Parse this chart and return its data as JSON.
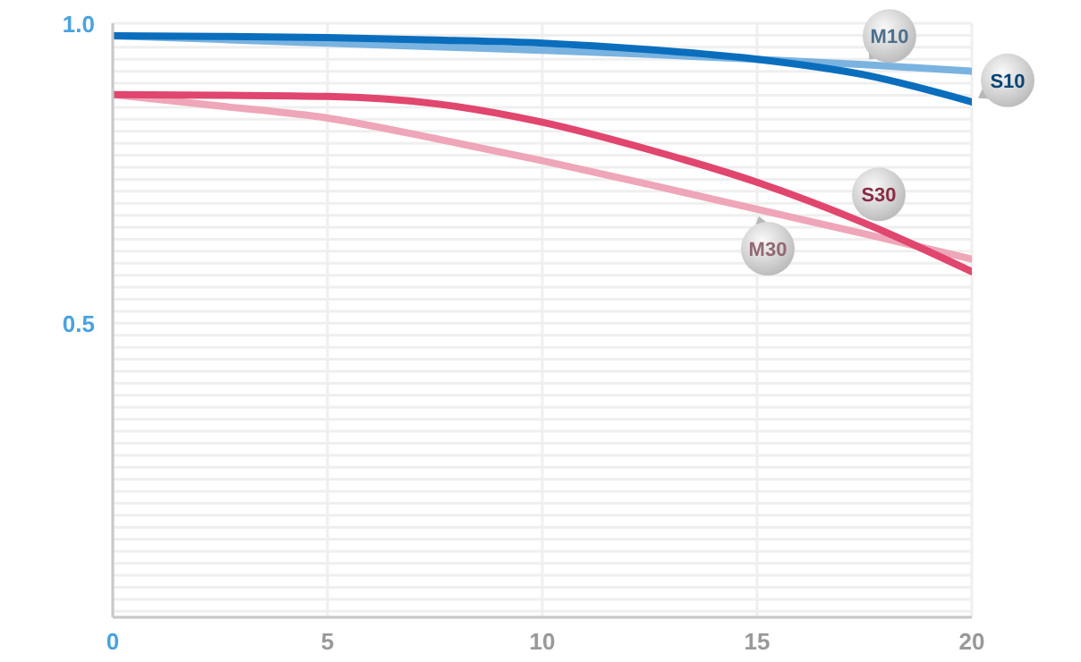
{
  "chart_data": {
    "type": "line",
    "x": [
      0,
      2.5,
      5,
      7.5,
      10,
      12.5,
      15,
      17.5,
      20
    ],
    "series": [
      {
        "name": "M10",
        "color": "#7ab3e0",
        "values": [
          0.979,
          0.973,
          0.967,
          0.961,
          0.955,
          0.948,
          0.94,
          0.931,
          0.92
        ]
      },
      {
        "name": "S10",
        "color": "#0a6ebd",
        "values": [
          0.979,
          0.978,
          0.976,
          0.972,
          0.967,
          0.956,
          0.94,
          0.914,
          0.869
        ]
      },
      {
        "name": "M30",
        "color": "#eea6b8",
        "values": [
          0.881,
          0.862,
          0.842,
          0.808,
          0.771,
          0.731,
          0.69,
          0.649,
          0.607
        ]
      },
      {
        "name": "S30",
        "color": "#e0466e",
        "values": [
          0.881,
          0.88,
          0.878,
          0.866,
          0.835,
          0.789,
          0.735,
          0.667,
          0.586
        ]
      }
    ],
    "xlim": [
      0,
      20
    ],
    "xticks": [
      0,
      5,
      10,
      15,
      20
    ],
    "ylim": [
      0.01,
      1.0
    ],
    "yticks": [
      {
        "value": 0.02,
        "label": null
      },
      {
        "value": 0.04,
        "label": null
      },
      {
        "value": 0.06,
        "label": null
      },
      {
        "value": 0.08,
        "label": null
      },
      {
        "value": 0.1,
        "label": null
      },
      {
        "value": 0.12,
        "label": null
      },
      {
        "value": 0.14,
        "label": null
      },
      {
        "value": 0.16,
        "label": null
      },
      {
        "value": 0.18,
        "label": null
      },
      {
        "value": 0.2,
        "label": null
      },
      {
        "value": 0.22,
        "label": null
      },
      {
        "value": 0.24,
        "label": null
      },
      {
        "value": 0.26,
        "label": null
      },
      {
        "value": 0.28,
        "label": null
      },
      {
        "value": 0.3,
        "label": null
      },
      {
        "value": 0.32,
        "label": null
      },
      {
        "value": 0.34,
        "label": null
      },
      {
        "value": 0.36,
        "label": null
      },
      {
        "value": 0.38,
        "label": null
      },
      {
        "value": 0.4,
        "label": null
      },
      {
        "value": 0.42,
        "label": null
      },
      {
        "value": 0.44,
        "label": null
      },
      {
        "value": 0.46,
        "label": null
      },
      {
        "value": 0.48,
        "label": null
      },
      {
        "value": 0.5,
        "label": "0.5"
      },
      {
        "value": 0.52,
        "label": null
      },
      {
        "value": 0.54,
        "label": null
      },
      {
        "value": 0.56,
        "label": null
      },
      {
        "value": 0.58,
        "label": null
      },
      {
        "value": 0.6,
        "label": null
      },
      {
        "value": 0.62,
        "label": null
      },
      {
        "value": 0.64,
        "label": null
      },
      {
        "value": 0.66,
        "label": null
      },
      {
        "value": 0.68,
        "label": null
      },
      {
        "value": 0.7,
        "label": null
      },
      {
        "value": 0.72,
        "label": null
      },
      {
        "value": 0.74,
        "label": null
      },
      {
        "value": 0.76,
        "label": null
      },
      {
        "value": 0.78,
        "label": null
      },
      {
        "value": 0.8,
        "label": null
      },
      {
        "value": 0.82,
        "label": null
      },
      {
        "value": 0.84,
        "label": null
      },
      {
        "value": 0.86,
        "label": null
      },
      {
        "value": 0.88,
        "label": null
      },
      {
        "value": 0.9,
        "label": null
      },
      {
        "value": 0.92,
        "label": null
      },
      {
        "value": 0.94,
        "label": null
      },
      {
        "value": 0.96,
        "label": null
      },
      {
        "value": 0.98,
        "label": null
      },
      {
        "value": 1.0,
        "label": "1.0"
      }
    ],
    "grid": true,
    "legend": false,
    "marker": "none",
    "line_style": "solid"
  }
}
